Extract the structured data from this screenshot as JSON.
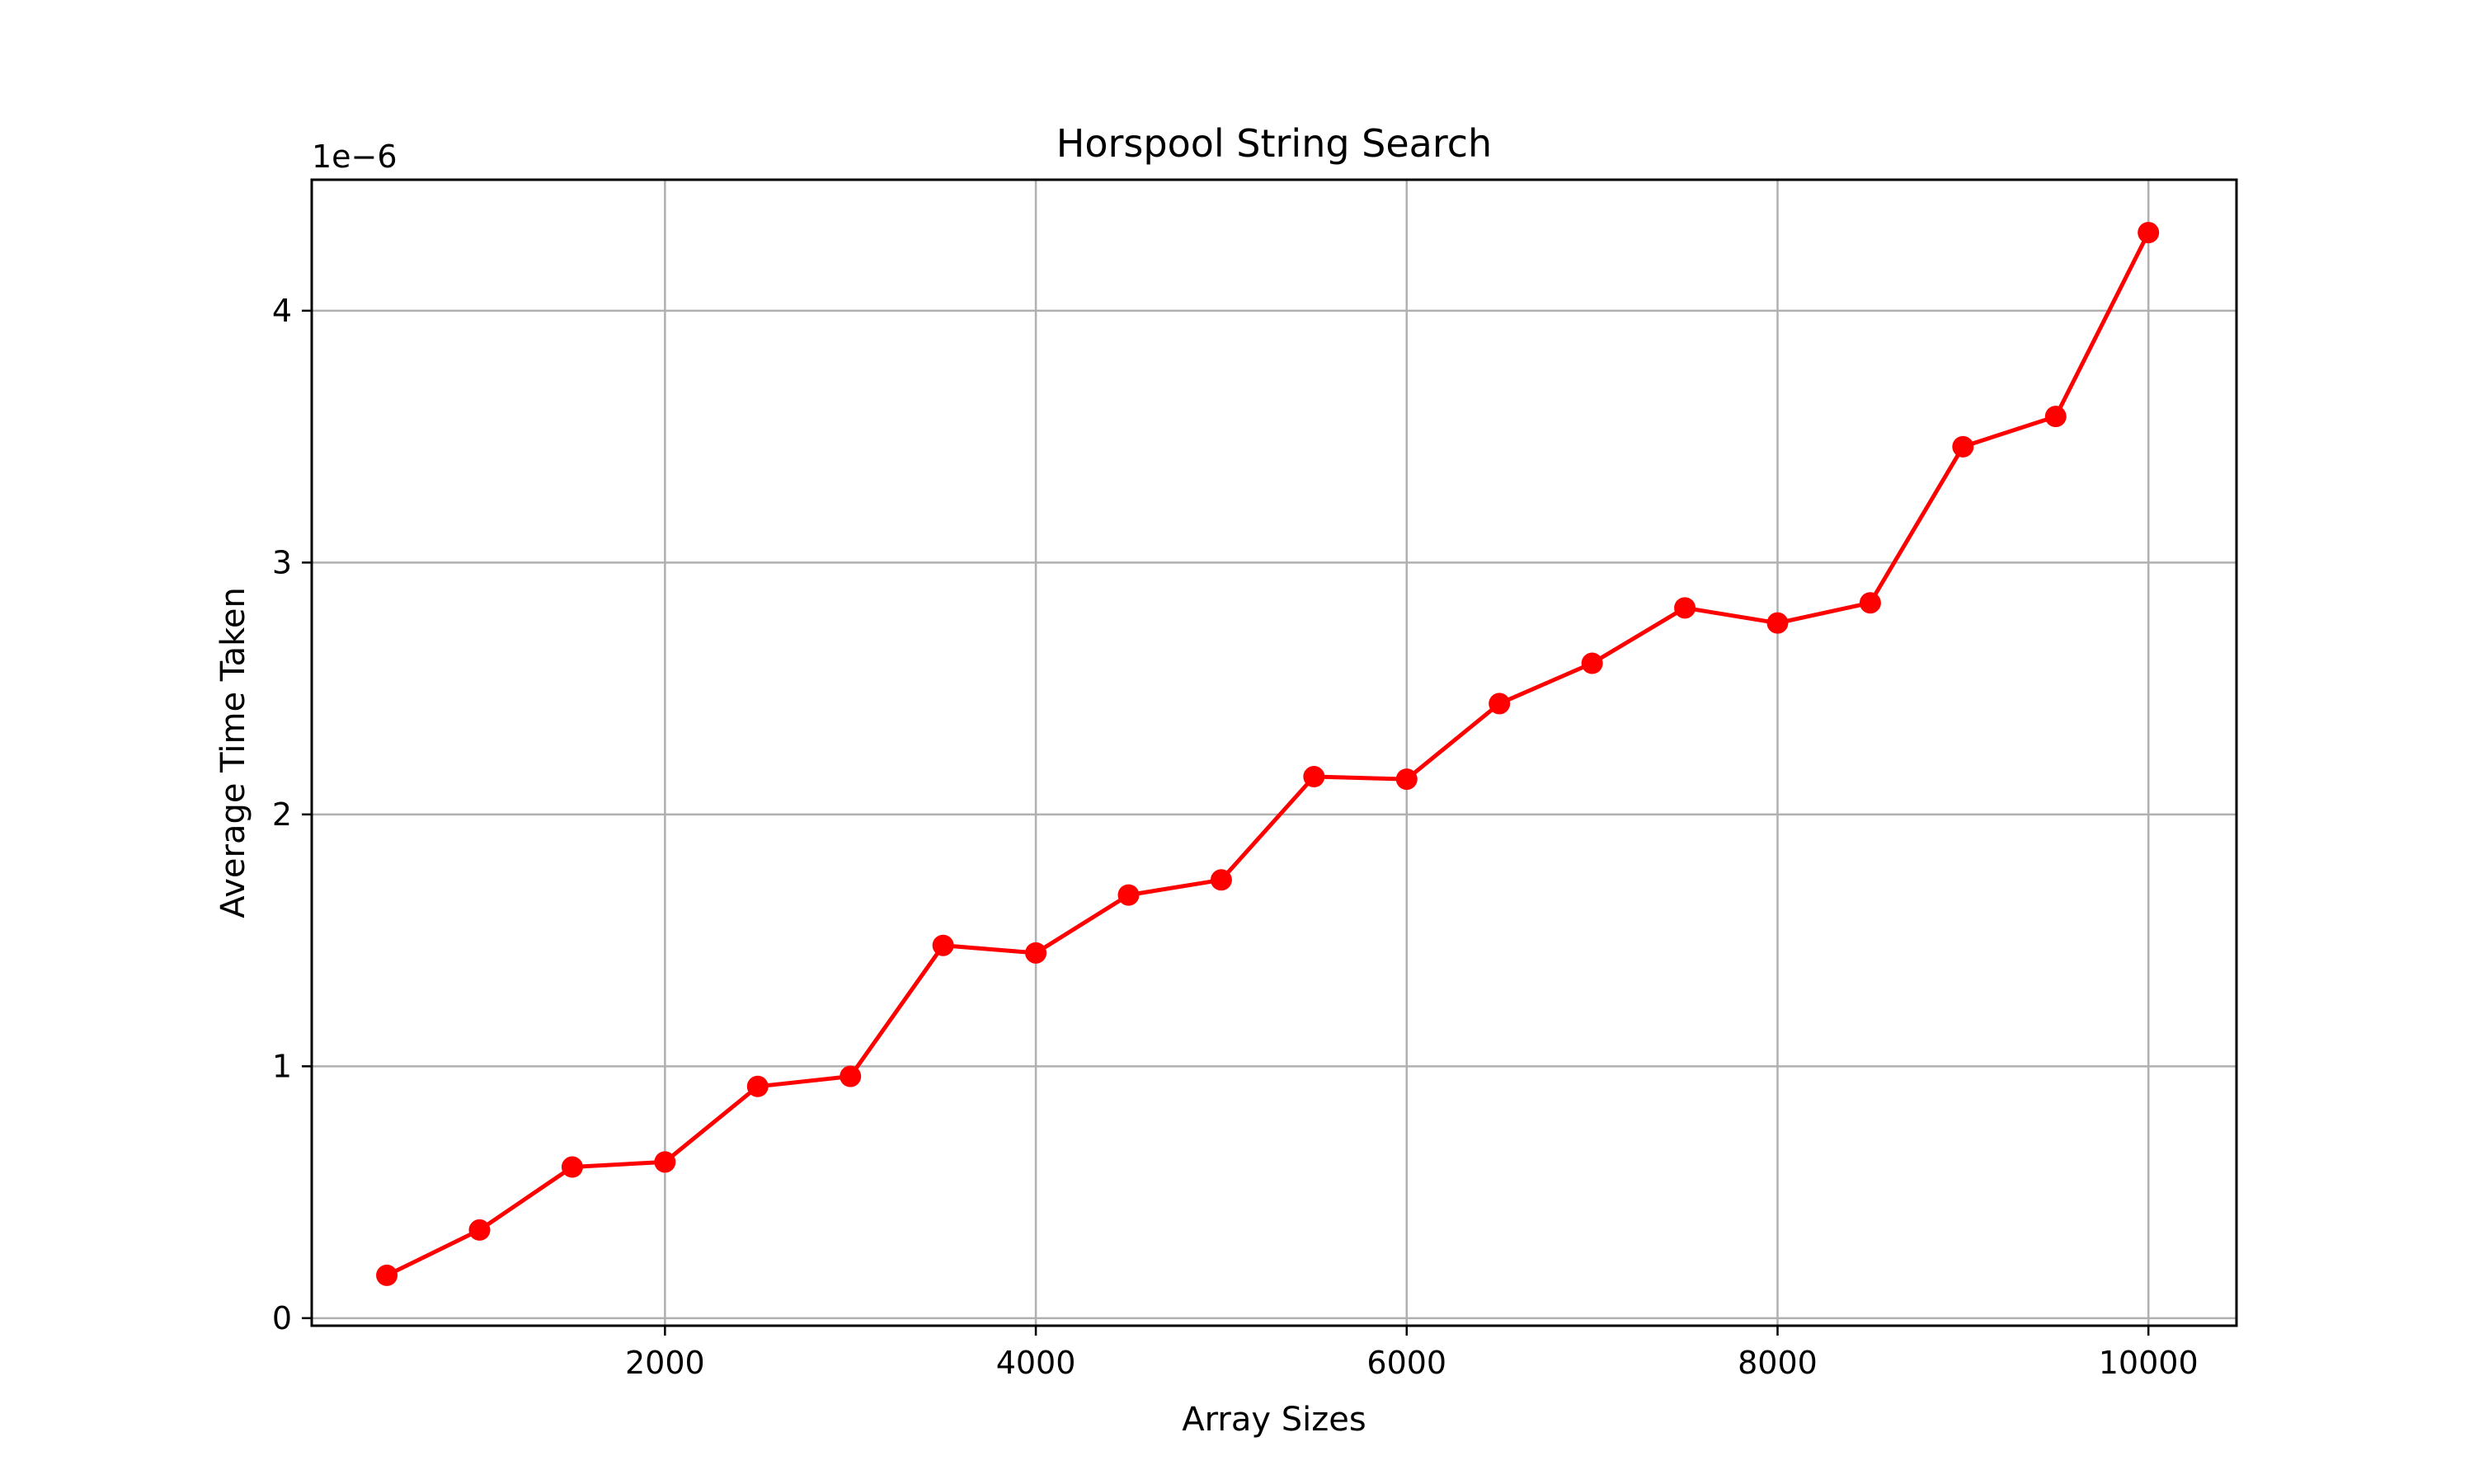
{
  "chart_data": {
    "type": "line",
    "title": "Horspool String Search",
    "xlabel": "Array Sizes",
    "ylabel": "Average Time Taken",
    "y_offset_label": "1e−6",
    "xlim": [
      95,
      10475
    ],
    "ylim": [
      -0.03,
      4.52
    ],
    "xticks": [
      2000,
      4000,
      6000,
      8000,
      10000
    ],
    "xtick_labels": [
      "2000",
      "4000",
      "6000",
      "8000",
      "10000"
    ],
    "yticks": [
      0,
      1,
      2,
      3,
      4
    ],
    "ytick_labels": [
      "0",
      "1",
      "2",
      "3",
      "4"
    ],
    "grid": true,
    "series": [
      {
        "color": "#ff0000",
        "marker": "circle",
        "x": [
          500,
          1000,
          1500,
          2000,
          2500,
          3000,
          3500,
          4000,
          4500,
          5000,
          5500,
          6000,
          6500,
          7000,
          7500,
          8000,
          8500,
          9000,
          9500,
          10000
        ],
        "y": [
          0.17,
          0.35,
          0.6,
          0.62,
          0.92,
          0.96,
          1.48,
          1.45,
          1.68,
          1.74,
          2.15,
          2.14,
          2.44,
          2.6,
          2.82,
          2.76,
          2.84,
          3.46,
          3.58,
          4.31
        ]
      }
    ]
  }
}
